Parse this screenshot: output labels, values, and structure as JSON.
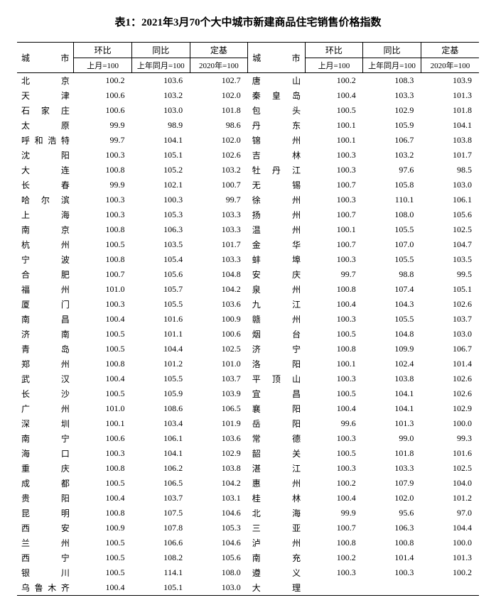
{
  "title": "表1：2021年3月70个大中城市新建商品住宅销售价格指数",
  "headers": {
    "city": "城市",
    "mom": "环比",
    "yoy": "同比",
    "base": "定基",
    "mom_sub": "上月=100",
    "yoy_sub": "上年同月=100",
    "base_sub": "2020年=100"
  },
  "left": [
    {
      "city": "北　京",
      "mom": "100.2",
      "yoy": "103.6",
      "base": "102.7"
    },
    {
      "city": "天　津",
      "mom": "100.6",
      "yoy": "103.2",
      "base": "102.0"
    },
    {
      "city": "石家庄",
      "mom": "100.6",
      "yoy": "103.0",
      "base": "101.8"
    },
    {
      "city": "太　原",
      "mom": "99.9",
      "yoy": "98.9",
      "base": "98.6"
    },
    {
      "city": "呼和浩特",
      "mom": "99.7",
      "yoy": "104.1",
      "base": "102.0"
    },
    {
      "city": "沈　阳",
      "mom": "100.3",
      "yoy": "105.1",
      "base": "102.6"
    },
    {
      "city": "大　连",
      "mom": "100.8",
      "yoy": "105.2",
      "base": "103.2"
    },
    {
      "city": "长　春",
      "mom": "99.9",
      "yoy": "102.1",
      "base": "100.7"
    },
    {
      "city": "哈尔滨",
      "mom": "100.3",
      "yoy": "100.3",
      "base": "99.7"
    },
    {
      "city": "上　海",
      "mom": "100.3",
      "yoy": "105.3",
      "base": "103.3"
    },
    {
      "city": "南　京",
      "mom": "100.8",
      "yoy": "106.3",
      "base": "103.3"
    },
    {
      "city": "杭　州",
      "mom": "100.5",
      "yoy": "103.5",
      "base": "101.7"
    },
    {
      "city": "宁　波",
      "mom": "100.8",
      "yoy": "105.4",
      "base": "103.3"
    },
    {
      "city": "合　肥",
      "mom": "100.7",
      "yoy": "105.6",
      "base": "104.8"
    },
    {
      "city": "福　州",
      "mom": "101.0",
      "yoy": "105.7",
      "base": "104.2"
    },
    {
      "city": "厦　门",
      "mom": "100.3",
      "yoy": "105.5",
      "base": "103.6"
    },
    {
      "city": "南　昌",
      "mom": "100.4",
      "yoy": "101.6",
      "base": "100.9"
    },
    {
      "city": "济　南",
      "mom": "100.5",
      "yoy": "101.1",
      "base": "100.6"
    },
    {
      "city": "青　岛",
      "mom": "100.5",
      "yoy": "104.4",
      "base": "102.5"
    },
    {
      "city": "郑　州",
      "mom": "100.8",
      "yoy": "101.2",
      "base": "101.0"
    },
    {
      "city": "武　汉",
      "mom": "100.4",
      "yoy": "105.5",
      "base": "103.7"
    },
    {
      "city": "长　沙",
      "mom": "100.5",
      "yoy": "105.9",
      "base": "103.9"
    },
    {
      "city": "广　州",
      "mom": "101.0",
      "yoy": "108.6",
      "base": "106.5"
    },
    {
      "city": "深　圳",
      "mom": "100.1",
      "yoy": "103.4",
      "base": "101.9"
    },
    {
      "city": "南　宁",
      "mom": "100.6",
      "yoy": "106.1",
      "base": "103.6"
    },
    {
      "city": "海　口",
      "mom": "100.3",
      "yoy": "104.1",
      "base": "102.9"
    },
    {
      "city": "重　庆",
      "mom": "100.8",
      "yoy": "106.2",
      "base": "103.8"
    },
    {
      "city": "成　都",
      "mom": "100.5",
      "yoy": "106.5",
      "base": "104.2"
    },
    {
      "city": "贵　阳",
      "mom": "100.4",
      "yoy": "103.7",
      "base": "103.1"
    },
    {
      "city": "昆　明",
      "mom": "100.8",
      "yoy": "107.5",
      "base": "104.6"
    },
    {
      "city": "西　安",
      "mom": "100.9",
      "yoy": "107.8",
      "base": "105.3"
    },
    {
      "city": "兰　州",
      "mom": "100.5",
      "yoy": "106.6",
      "base": "104.6"
    },
    {
      "city": "西　宁",
      "mom": "100.5",
      "yoy": "108.2",
      "base": "105.6"
    },
    {
      "city": "银　川",
      "mom": "100.5",
      "yoy": "114.1",
      "base": "108.0"
    },
    {
      "city": "乌鲁木齐",
      "mom": "100.4",
      "yoy": "105.1",
      "base": "103.0"
    }
  ],
  "right": [
    {
      "city": "唐　山",
      "mom": "100.2",
      "yoy": "108.3",
      "base": "103.9"
    },
    {
      "city": "秦皇岛",
      "mom": "100.4",
      "yoy": "103.3",
      "base": "101.3"
    },
    {
      "city": "包　头",
      "mom": "100.5",
      "yoy": "102.9",
      "base": "101.8"
    },
    {
      "city": "丹　东",
      "mom": "100.1",
      "yoy": "105.9",
      "base": "104.1"
    },
    {
      "city": "锦　州",
      "mom": "100.1",
      "yoy": "106.7",
      "base": "103.8"
    },
    {
      "city": "吉　林",
      "mom": "100.3",
      "yoy": "103.2",
      "base": "101.7"
    },
    {
      "city": "牡丹江",
      "mom": "100.3",
      "yoy": "97.6",
      "base": "98.5"
    },
    {
      "city": "无　锡",
      "mom": "100.7",
      "yoy": "105.8",
      "base": "103.0"
    },
    {
      "city": "徐　州",
      "mom": "100.3",
      "yoy": "110.1",
      "base": "106.1"
    },
    {
      "city": "扬　州",
      "mom": "100.7",
      "yoy": "108.0",
      "base": "105.6"
    },
    {
      "city": "温　州",
      "mom": "100.1",
      "yoy": "105.5",
      "base": "102.5"
    },
    {
      "city": "金　华",
      "mom": "100.7",
      "yoy": "107.0",
      "base": "104.7"
    },
    {
      "city": "蚌　埠",
      "mom": "100.3",
      "yoy": "105.5",
      "base": "103.5"
    },
    {
      "city": "安　庆",
      "mom": "99.7",
      "yoy": "98.8",
      "base": "99.5"
    },
    {
      "city": "泉　州",
      "mom": "100.8",
      "yoy": "107.4",
      "base": "105.1"
    },
    {
      "city": "九　江",
      "mom": "100.4",
      "yoy": "104.3",
      "base": "102.6"
    },
    {
      "city": "赣　州",
      "mom": "100.3",
      "yoy": "105.5",
      "base": "103.7"
    },
    {
      "city": "烟　台",
      "mom": "100.5",
      "yoy": "104.8",
      "base": "103.0"
    },
    {
      "city": "济　宁",
      "mom": "100.8",
      "yoy": "109.9",
      "base": "106.7"
    },
    {
      "city": "洛　阳",
      "mom": "100.1",
      "yoy": "102.4",
      "base": "101.4"
    },
    {
      "city": "平顶山",
      "mom": "100.3",
      "yoy": "103.8",
      "base": "102.6"
    },
    {
      "city": "宜　昌",
      "mom": "100.5",
      "yoy": "104.1",
      "base": "102.6"
    },
    {
      "city": "襄　阳",
      "mom": "100.4",
      "yoy": "104.1",
      "base": "102.9"
    },
    {
      "city": "岳　阳",
      "mom": "99.6",
      "yoy": "101.3",
      "base": "100.0"
    },
    {
      "city": "常　德",
      "mom": "100.3",
      "yoy": "99.0",
      "base": "99.3"
    },
    {
      "city": "韶　关",
      "mom": "100.5",
      "yoy": "101.8",
      "base": "101.6"
    },
    {
      "city": "湛　江",
      "mom": "100.3",
      "yoy": "103.3",
      "base": "102.5"
    },
    {
      "city": "惠　州",
      "mom": "100.2",
      "yoy": "107.9",
      "base": "104.0"
    },
    {
      "city": "桂　林",
      "mom": "100.4",
      "yoy": "102.0",
      "base": "101.2"
    },
    {
      "city": "北　海",
      "mom": "99.9",
      "yoy": "95.6",
      "base": "97.0"
    },
    {
      "city": "三　亚",
      "mom": "100.7",
      "yoy": "106.3",
      "base": "104.4"
    },
    {
      "city": "泸　州",
      "mom": "100.8",
      "yoy": "100.8",
      "base": "100.0"
    },
    {
      "city": "南　充",
      "mom": "100.2",
      "yoy": "101.4",
      "base": "101.3"
    },
    {
      "city": "遵　义",
      "mom": "100.3",
      "yoy": "100.3",
      "base": "100.2"
    },
    {
      "city": "大　理",
      "mom": "",
      "yoy": "",
      "base": ""
    }
  ]
}
